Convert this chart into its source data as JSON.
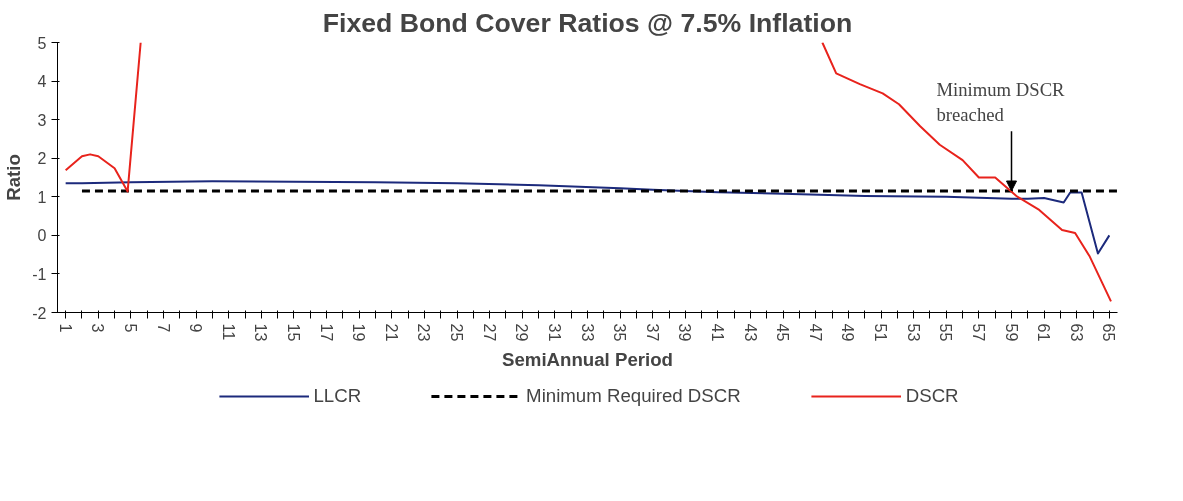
{
  "chart_data": {
    "type": "line",
    "title": "Fixed Bond Cover Ratios @ 7.5% Inflation",
    "xlabel": "SemiAnnual Period",
    "ylabel": "Ratio",
    "xlim": [
      0.5,
      65.5
    ],
    "ylim": [
      -2,
      5
    ],
    "xticks": [
      1,
      {
        "value": 2,
        "label": null
      },
      3,
      {
        "value": 4,
        "label": null
      },
      5,
      {
        "value": 6,
        "label": null
      },
      7,
      {
        "value": 8,
        "label": null
      },
      9,
      {
        "value": 10,
        "label": null
      },
      11,
      {
        "value": 12,
        "label": null
      },
      13,
      {
        "value": 14,
        "label": null
      },
      15,
      {
        "value": 16,
        "label": null
      },
      17,
      {
        "value": 18,
        "label": null
      },
      19,
      {
        "value": 20,
        "label": null
      },
      21,
      {
        "value": 22,
        "label": null
      },
      23,
      {
        "value": 24,
        "label": null
      },
      25,
      {
        "value": 26,
        "label": null
      },
      27,
      {
        "value": 28,
        "label": null
      },
      29,
      {
        "value": 30,
        "label": null
      },
      31,
      {
        "value": 32,
        "label": null
      },
      33,
      {
        "value": 34,
        "label": null
      },
      35,
      {
        "value": 36,
        "label": null
      },
      37,
      {
        "value": 38,
        "label": null
      },
      39,
      {
        "value": 40,
        "label": null
      },
      41,
      {
        "value": 42,
        "label": null
      },
      43,
      {
        "value": 44,
        "label": null
      },
      45,
      {
        "value": 46,
        "label": null
      },
      47,
      {
        "value": 48,
        "label": null
      },
      49,
      {
        "value": 50,
        "label": null
      },
      51,
      {
        "value": 52,
        "label": null
      },
      53,
      {
        "value": 54,
        "label": null
      },
      55,
      {
        "value": 56,
        "label": null
      },
      57,
      {
        "value": 58,
        "label": null
      },
      59,
      {
        "value": 60,
        "label": null
      },
      61,
      {
        "value": 62,
        "label": null
      },
      63,
      {
        "value": 64,
        "label": null
      },
      65
    ],
    "yticks": [
      -2,
      -1,
      0,
      1,
      2,
      3,
      4,
      5
    ],
    "grid": false,
    "legend": "bottom",
    "marker": "none",
    "series": [
      {
        "name": "LLCR",
        "color": "#1c2a7c",
        "line_style": "solid",
        "x": [
          1,
          2,
          5,
          10,
          20,
          25,
          30,
          35,
          37,
          41,
          45,
          50,
          55,
          59,
          60,
          61,
          62.2,
          62.6,
          63.3,
          64.3,
          65
        ],
        "values": [
          1.35,
          1.35,
          1.38,
          1.4,
          1.38,
          1.35,
          1.3,
          1.22,
          1.18,
          1.12,
          1.08,
          1.02,
          1.0,
          0.95,
          0.95,
          0.97,
          0.85,
          1.11,
          1.11,
          -0.47,
          0.0
        ]
      },
      {
        "name": "Minimum Required DSCR",
        "color": "#000000",
        "line_style": "dashed",
        "x": [
          2,
          65.5
        ],
        "values": [
          1.15,
          1.15
        ]
      },
      {
        "name": "DSCR",
        "color": "#e8231c",
        "line_style": "solid",
        "x": [
          1,
          2,
          2.5,
          3,
          4,
          4.8,
          5.6,
          null,
          47.4,
          48.25,
          49.7,
          51.1,
          52.1,
          53.4,
          54.6,
          56.0,
          57.0,
          58.0,
          59.3,
          60.7,
          62.1,
          62.9,
          63.8,
          65.1
        ],
        "values": [
          1.69,
          2.05,
          2.1,
          2.05,
          1.74,
          1.14,
          5.0,
          null,
          5.0,
          4.2,
          3.92,
          3.68,
          3.4,
          2.83,
          2.35,
          1.95,
          1.5,
          1.5,
          1.02,
          0.66,
          0.14,
          0.06,
          -0.55,
          -1.71
        ]
      }
    ],
    "annotations": [
      {
        "text": "Minimum DSCR\nbreached",
        "x": 59,
        "y": 1.15
      }
    ]
  }
}
